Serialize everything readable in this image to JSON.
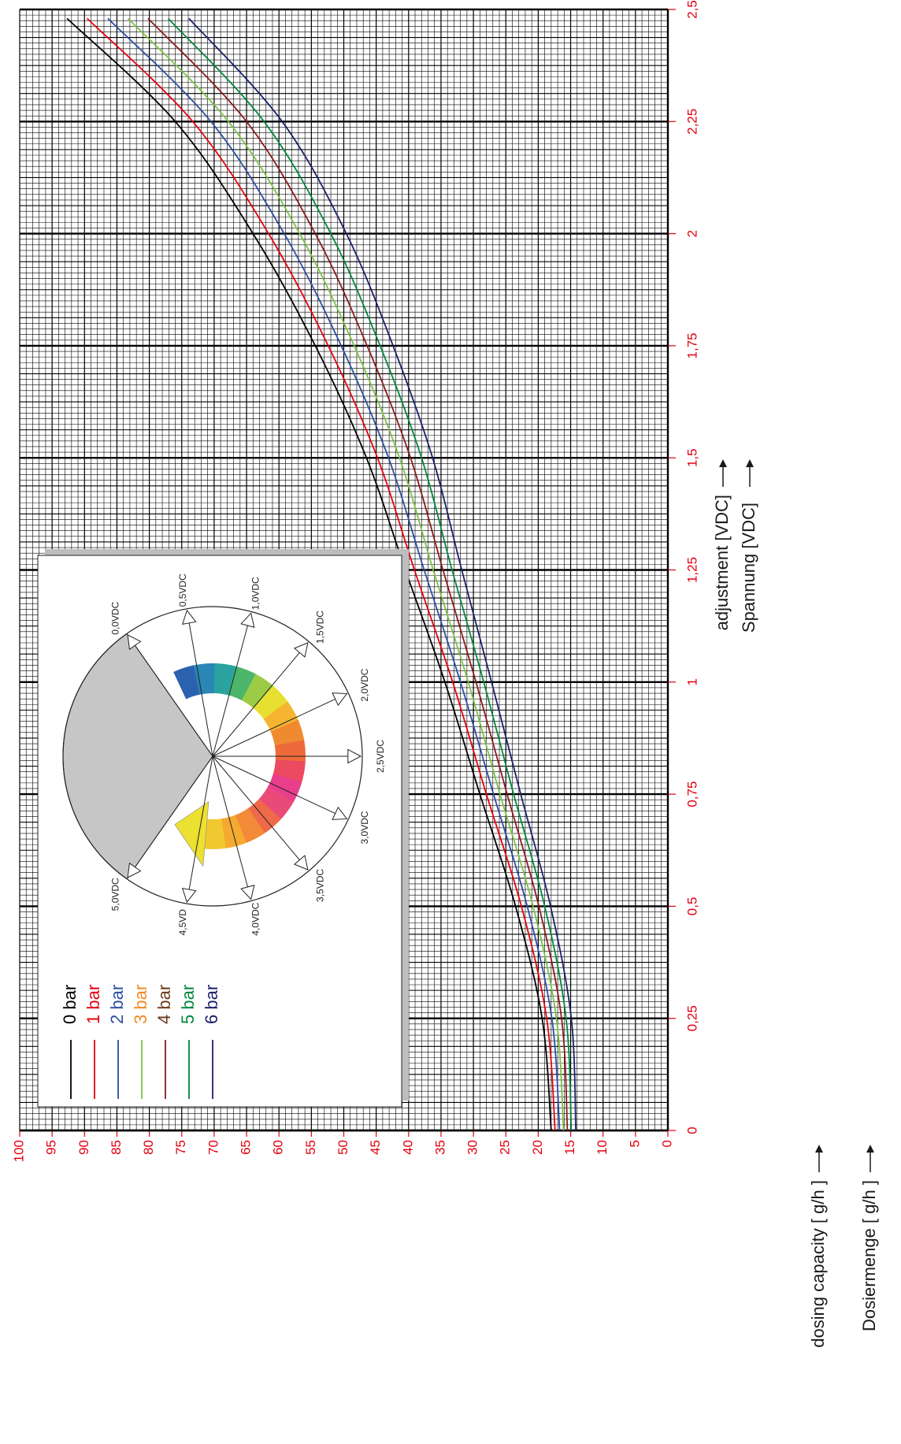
{
  "chart_data": {
    "type": "line",
    "x_label": "adjustment [VDC]",
    "x_label_2": "Spannung [VDC]",
    "y_label": "dosing capacity [ g/h ]",
    "y_label_2": "Dosiermenge [ g/h ]",
    "x": [
      0,
      0.25,
      0.5,
      0.75,
      1,
      1.25,
      1.5,
      1.75,
      2,
      2.25,
      2.48
    ],
    "xlim": [
      0,
      2.5
    ],
    "xticks": [
      0,
      {
        "value": 0.25,
        "label": "0,25"
      },
      {
        "value": 0.5,
        "label": "0,5"
      },
      {
        "value": 0.75,
        "label": "0,75"
      },
      1,
      {
        "value": 1.25,
        "label": "1,25"
      },
      {
        "value": 1.5,
        "label": "1,5"
      },
      {
        "value": 1.75,
        "label": "1,75"
      },
      2,
      {
        "value": 2.25,
        "label": "2,25"
      },
      {
        "value": 2.5,
        "label": "2,5"
      }
    ],
    "ylim": [
      0,
      100
    ],
    "yticks": [
      0,
      5,
      10,
      15,
      20,
      25,
      30,
      35,
      40,
      45,
      50,
      55,
      60,
      65,
      70,
      75,
      80,
      85,
      90,
      95,
      100
    ],
    "grid": true,
    "series": [
      {
        "name": "0 bar",
        "color": "#000000",
        "label_color": "#000000",
        "values": [
          18,
          19.4,
          23.5,
          29,
          34.4,
          40.5,
          46.5,
          54.4,
          64,
          76,
          92.7
        ]
      },
      {
        "name": "1 bar",
        "color": "#e3000f",
        "label_color": "#e3000f",
        "values": [
          17.4,
          18.7,
          22.6,
          28.0,
          33.2,
          39.1,
          44.8,
          52.4,
          61.6,
          73.3,
          89.6
        ]
      },
      {
        "name": "2 bar",
        "color": "#2b4ea2",
        "label_color": "#2b4ea2",
        "values": [
          16.7,
          17.9,
          21.7,
          26.9,
          32.0,
          37.6,
          43.1,
          50.4,
          59.2,
          70.5,
          86.4
        ]
      },
      {
        "name": "3 bar",
        "color": "#7ac143",
        "label_color": "#f08a24",
        "values": [
          16.1,
          17.2,
          20.8,
          25.9,
          30.8,
          36.2,
          41.4,
          48.4,
          56.8,
          67.8,
          83.3
        ]
      },
      {
        "name": "4 bar",
        "color": "#8b1a1a",
        "label_color": "#6b3a1a",
        "values": [
          15.5,
          16.4,
          19.9,
          24.8,
          29.6,
          34.7,
          39.7,
          46.4,
          54.4,
          65,
          80.2
        ]
      },
      {
        "name": "5 bar",
        "color": "#00873e",
        "label_color": "#00873e",
        "values": [
          14.9,
          15.7,
          19.0,
          23.8,
          28.4,
          33.3,
          38.0,
          44.4,
          52.0,
          62.3,
          77.1
        ]
      },
      {
        "name": "6 bar",
        "color": "#1b1f6b",
        "label_color": "#1b1f6b",
        "values": [
          14.2,
          14.9,
          18.1,
          22.7,
          27.2,
          31.8,
          36.3,
          42.4,
          49.6,
          59.5,
          73.9
        ]
      }
    ]
  },
  "inset": {
    "labels": [
      "0,0VDC",
      "0,5VDC",
      "1,0VDC",
      "1,5VDC",
      "2,0VDC",
      "2,5VDC",
      "3,0VDC",
      "3,5VDC",
      "4,0VDC",
      "4,5VD",
      "5,0VDC"
    ]
  }
}
